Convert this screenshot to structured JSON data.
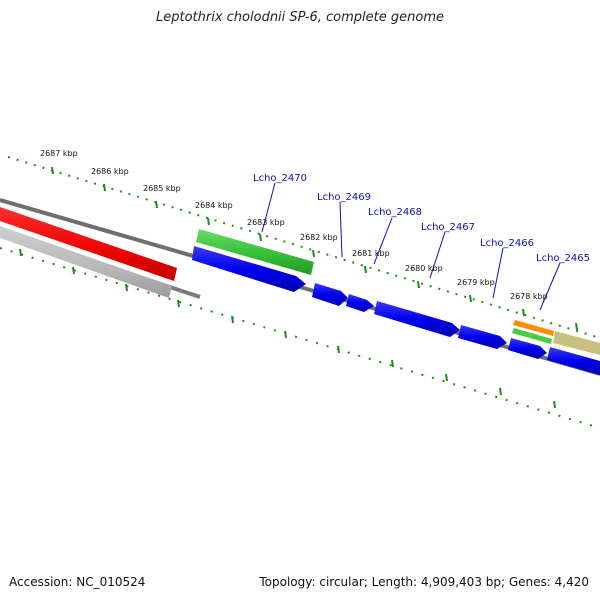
{
  "title": "Leptothrix cholodnii SP-6, complete genome",
  "footer": {
    "accession": "Accession: NC_010524",
    "summary": "Topology: circular; Length: 4,909,403 bp; Genes: 4,420"
  },
  "scale_labels": [
    "2687 kbp",
    "2686 kbp",
    "2685 kbp",
    "2684 kbp",
    "2683 kbp",
    "2682 kbp",
    "2681 kbp",
    "2680 kbp",
    "2679 kbp",
    "2678 kbp"
  ],
  "gene_labels": [
    "Lcho_2470",
    "Lcho_2469",
    "Lcho_2468",
    "Lcho_2467",
    "Lcho_2466",
    "Lcho_2465"
  ],
  "colors": {
    "backbone": "#808080",
    "tick": "#1f8a1f",
    "cds": "#0000f0",
    "gene_label": "#1010b0",
    "red_feature": "#ee0000",
    "grey_feature": "#bbbbbb",
    "green_feature": "#44cc44",
    "orange_feature": "#ff8c00",
    "olive_feature": "#c8c080"
  }
}
